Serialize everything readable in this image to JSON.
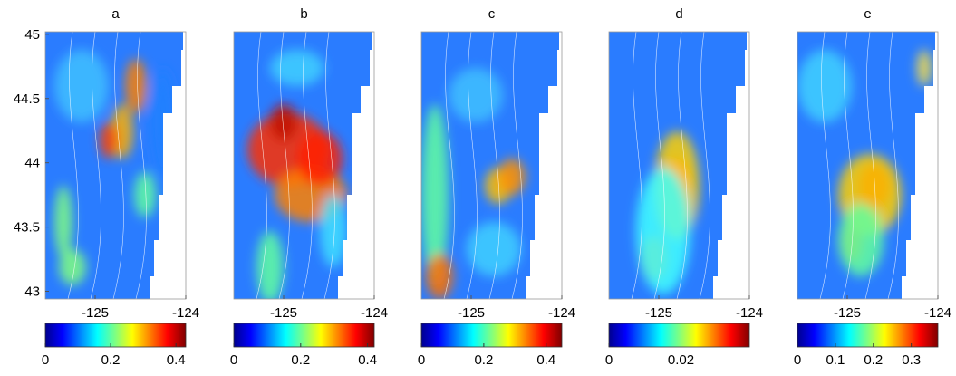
{
  "chart_data": [
    {
      "type": "map",
      "title": "a",
      "xlim": [
        -125.55,
        -124
      ],
      "ylim": [
        42.94,
        45.02
      ],
      "xticks": [
        -125,
        -124
      ],
      "yticks": [
        43,
        43.5,
        44,
        44.5,
        45
      ],
      "colorbar": {
        "lim": [
          0,
          0.43
        ],
        "ticks": [
          0,
          0.2,
          0.4
        ]
      }
    },
    {
      "type": "map",
      "title": "b",
      "xlim": [
        -125.55,
        -124
      ],
      "ylim": [
        42.94,
        45.02
      ],
      "xticks": [
        -125,
        -124
      ],
      "yticks": [],
      "colorbar": {
        "lim": [
          0,
          0.42
        ],
        "ticks": [
          0,
          0.2,
          0.4
        ]
      }
    },
    {
      "type": "map",
      "title": "c",
      "xlim": [
        -125.55,
        -124
      ],
      "ylim": [
        42.94,
        45.02
      ],
      "xticks": [
        -125,
        -124
      ],
      "yticks": [],
      "colorbar": {
        "lim": [
          0,
          0.45
        ],
        "ticks": [
          0,
          0.2,
          0.4
        ]
      }
    },
    {
      "type": "map",
      "title": "d",
      "xlim": [
        -125.55,
        -124
      ],
      "ylim": [
        42.94,
        45.02
      ],
      "xticks": [
        -125,
        -124
      ],
      "yticks": [],
      "colorbar": {
        "lim": [
          0,
          0.039
        ],
        "ticks": [
          0,
          0.02
        ]
      }
    },
    {
      "type": "map",
      "title": "e",
      "xlim": [
        -125.55,
        -124
      ],
      "ylim": [
        42.94,
        45.02
      ],
      "xticks": [
        -125,
        -124
      ],
      "yticks": [],
      "colorbar": {
        "lim": [
          0,
          0.37
        ],
        "ticks": [
          0,
          0.1,
          0.2,
          0.3
        ]
      }
    }
  ]
}
